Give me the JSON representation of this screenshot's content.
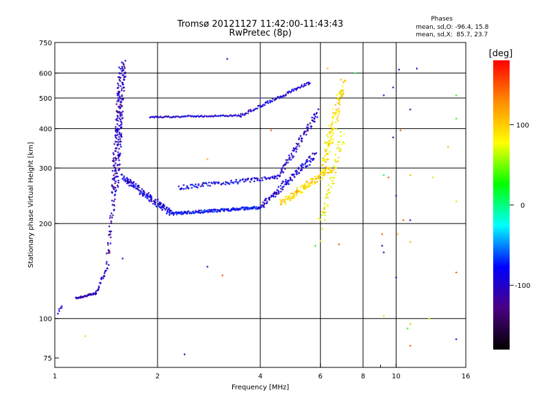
{
  "chart_data": {
    "type": "scatter",
    "title": "Tromsø 20121127 11:42:00-11:43:43",
    "subtitle": "RwPretec (8p)",
    "xlabel": "Frequency [MHz]",
    "ylabel": "Stationary phase Virtual Height [km]",
    "x_scale": "log",
    "y_scale": "log",
    "xlim": [
      1,
      16
    ],
    "ylim": [
      70,
      750
    ],
    "x_ticks": [
      1,
      2,
      4,
      6,
      8,
      10,
      16
    ],
    "x_minor_ticks": [
      9
    ],
    "y_ticks": [
      75,
      100,
      200,
      300,
      400,
      500,
      600,
      750
    ],
    "x_grid": [
      2,
      4,
      6,
      8,
      10
    ],
    "y_grid": [
      100,
      200,
      300,
      400,
      500,
      600
    ],
    "grid": true,
    "phase_stats": {
      "heading": "Phases",
      "o_line": "mean, sd,O: -96.4, 15.8",
      "x_line": "mean, sd,X:  85.7, 23.7"
    },
    "colorbar": {
      "label": "[deg]",
      "range": [
        -180,
        180
      ],
      "ticks": [
        100,
        0,
        -100
      ],
      "colormap": "rainbow",
      "stops": [
        "#000000",
        "#4b0082",
        "#0000ff",
        "#00ffff",
        "#00ff00",
        "#ffff00",
        "#ff8c00",
        "#ff0000"
      ]
    },
    "series": [
      {
        "traces": [
          {
            "x_start": 1.02,
            "x_end": 1.05,
            "y_start": 104,
            "y_end": 110,
            "phase": -100,
            "n": 6,
            "spread": 0.02
          },
          {
            "x_start": 1.15,
            "x_end": 1.32,
            "y_start": 116,
            "y_end": 120,
            "phase": -110,
            "n": 40,
            "spread": 0.015
          },
          {
            "x_start": 1.32,
            "x_end": 1.42,
            "y_start": 120,
            "y_end": 145,
            "phase": -100,
            "n": 25,
            "spread": 0.03
          },
          {
            "x_start": 1.42,
            "x_end": 1.5,
            "y_start": 150,
            "y_end": 260,
            "phase": -110,
            "n": 40,
            "spread": 0.06
          },
          {
            "x_start": 1.5,
            "x_end": 1.58,
            "y_start": 260,
            "y_end": 640,
            "phase": -105,
            "n": 220,
            "spread": 0.12
          },
          {
            "x_start": 1.58,
            "x_end": 2.2,
            "y_start": 280,
            "y_end": 215,
            "phase": -90,
            "n": 140,
            "spread": 0.05
          },
          {
            "x_start": 2.2,
            "x_end": 4.0,
            "y_start": 215,
            "y_end": 225,
            "phase": -80,
            "n": 160,
            "spread": 0.02
          },
          {
            "x_start": 4.0,
            "x_end": 5.8,
            "y_start": 225,
            "y_end": 330,
            "phase": -95,
            "n": 120,
            "spread": 0.05
          },
          {
            "x_start": 2.3,
            "x_end": 4.5,
            "y_start": 260,
            "y_end": 280,
            "phase": -90,
            "n": 100,
            "spread": 0.03
          },
          {
            "x_start": 4.5,
            "x_end": 5.9,
            "y_start": 280,
            "y_end": 450,
            "phase": -100,
            "n": 80,
            "spread": 0.05
          },
          {
            "x_start": 1.9,
            "x_end": 3.5,
            "y_start": 435,
            "y_end": 440,
            "phase": -95,
            "n": 80,
            "spread": 0.01
          },
          {
            "x_start": 3.5,
            "x_end": 5.6,
            "y_start": 440,
            "y_end": 560,
            "phase": -95,
            "n": 80,
            "spread": 0.02
          },
          {
            "x_start": 4.6,
            "x_end": 6.5,
            "y_start": 232,
            "y_end": 300,
            "phase": 95,
            "n": 140,
            "spread": 0.05
          },
          {
            "x_start": 6.1,
            "x_end": 7.0,
            "y_start": 300,
            "y_end": 560,
            "phase": 90,
            "n": 120,
            "spread": 0.1
          },
          {
            "x_start": 6.0,
            "x_end": 7.0,
            "y_start": 200,
            "y_end": 380,
            "phase": 80,
            "n": 60,
            "spread": 0.08
          }
        ]
      }
    ],
    "scattered_points": [
      [
        3.2,
        665,
        -100
      ],
      [
        4.0,
        500,
        -100
      ],
      [
        5.8,
        170,
        30
      ],
      [
        6.3,
        620,
        110
      ],
      [
        7.6,
        600,
        10
      ],
      [
        9.2,
        510,
        -95
      ],
      [
        9.8,
        540,
        -110
      ],
      [
        10.2,
        615,
        -100
      ],
      [
        11.5,
        620,
        -100
      ],
      [
        9.8,
        375,
        -100
      ],
      [
        10.3,
        395,
        150
      ],
      [
        11.0,
        460,
        -110
      ],
      [
        15.0,
        510,
        30
      ],
      [
        15.0,
        430,
        30
      ],
      [
        14.2,
        350,
        110
      ],
      [
        12.8,
        280,
        60
      ],
      [
        9.2,
        285,
        10
      ],
      [
        9.5,
        280,
        150
      ],
      [
        11.0,
        285,
        110
      ],
      [
        10.0,
        245,
        -110
      ],
      [
        10.5,
        205,
        150
      ],
      [
        11.0,
        205,
        -110
      ],
      [
        15.0,
        235,
        60
      ],
      [
        9.1,
        185,
        150
      ],
      [
        10.1,
        185,
        110
      ],
      [
        11.0,
        175,
        110
      ],
      [
        9.1,
        170,
        -110
      ],
      [
        9.2,
        162,
        -110
      ],
      [
        10.0,
        135,
        -100
      ],
      [
        15.0,
        140,
        150
      ],
      [
        9.2,
        102,
        60
      ],
      [
        11.0,
        96,
        110
      ],
      [
        12.5,
        100,
        60
      ],
      [
        10.8,
        93,
        30
      ],
      [
        11.0,
        82,
        150
      ],
      [
        15.0,
        86,
        -100
      ],
      [
        1.23,
        88,
        60
      ],
      [
        2.4,
        77,
        -100
      ],
      [
        2.8,
        146,
        -100
      ],
      [
        3.1,
        137,
        150
      ],
      [
        1.58,
        155,
        -100
      ],
      [
        1.45,
        162,
        150
      ],
      [
        2.8,
        320,
        110
      ],
      [
        4.3,
        395,
        150
      ],
      [
        6.8,
        172,
        150
      ],
      [
        6.0,
        176,
        60
      ]
    ]
  }
}
